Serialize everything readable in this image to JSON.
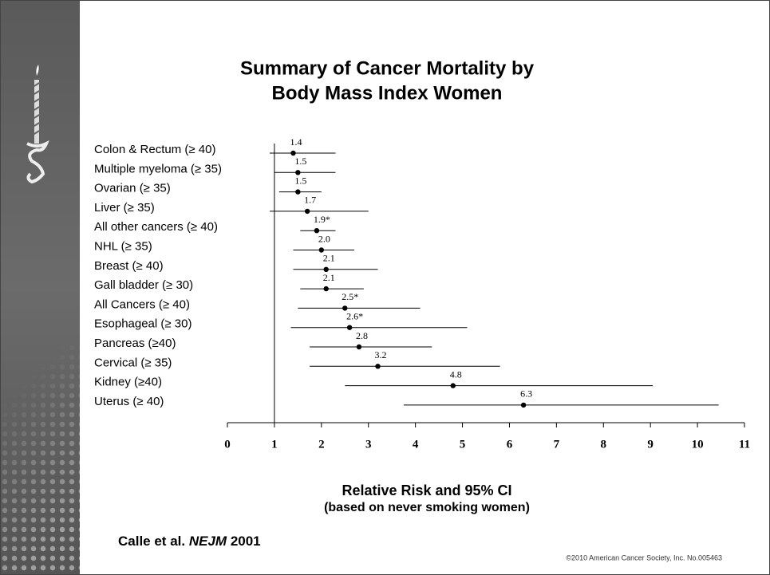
{
  "chart_data": {
    "type": "forest",
    "title": [
      "Summary of Cancer Mortality by",
      "Body Mass Index Women"
    ],
    "categories": [
      "Colon & Rectum  (≥ 40)",
      "Multiple myeloma (≥ 35)",
      "Ovarian (≥ 35)",
      "Liver  (≥ 35)",
      "All other cancers (≥ 40)",
      "NHL  (≥ 35)",
      "Breast  (≥ 40)",
      "Gall bladder  (≥ 30)",
      "All Cancers (≥ 40)",
      "Esophageal  (≥ 30)",
      "Pancreas  (≥40)",
      "Cervical  (≥ 35)",
      "Kidney  (≥40)",
      "Uterus  (≥ 40)"
    ],
    "values": [
      1.4,
      1.5,
      1.5,
      1.7,
      1.9,
      2.0,
      2.1,
      2.1,
      2.5,
      2.6,
      2.8,
      3.2,
      4.8,
      6.3
    ],
    "value_labels": [
      "1.4",
      "1.5",
      "1.5",
      "1.7",
      "1.9*",
      "2.0",
      "2.1",
      "2.1",
      "2.5*",
      "2.6*",
      "2.8",
      "3.2",
      "4.8",
      "6.3"
    ],
    "ci_low": [
      0.9,
      1.0,
      1.1,
      0.9,
      1.55,
      1.4,
      1.4,
      1.55,
      1.5,
      1.35,
      1.75,
      1.75,
      2.5,
      3.75
    ],
    "ci_high": [
      2.3,
      2.3,
      2.0,
      3.0,
      2.3,
      2.7,
      3.2,
      2.9,
      4.1,
      5.1,
      4.35,
      5.8,
      9.05,
      10.45
    ],
    "reference_line": 1,
    "xlim": [
      0,
      11
    ],
    "xticks": [
      0,
      1,
      2,
      3,
      4,
      5,
      6,
      7,
      8,
      9,
      10,
      11
    ],
    "xlabel": "Relative Risk and 95% CI",
    "xlabel_note": "(based on never smoking women)",
    "color": "#000000"
  },
  "source": {
    "authors": "Calle et al.",
    "journal": "NEJM",
    "year": "2001"
  },
  "copyright": "©2010 American Cancer Society, Inc. No.005463"
}
